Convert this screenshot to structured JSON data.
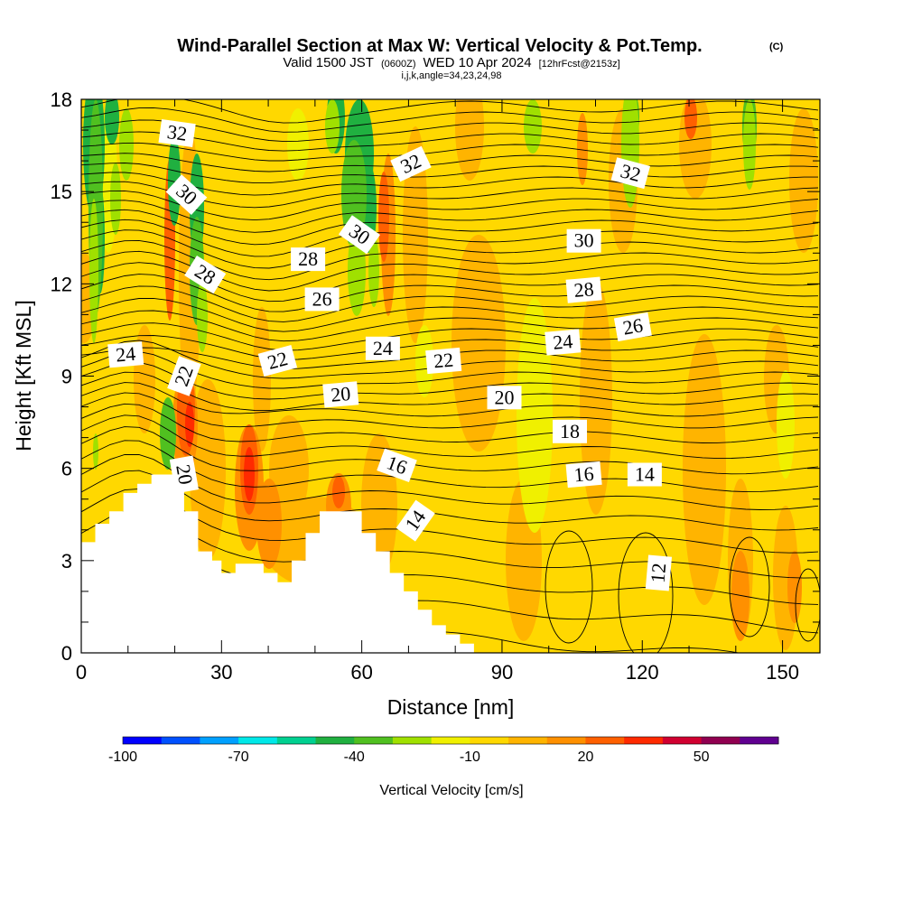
{
  "chart_data": {
    "type": "heatmap",
    "title": {
      "main": "Wind-Parallel Section at Max W: Vertical Velocity & Pot.Temp.",
      "copyright": "(C)",
      "valid_prefix": "Valid 1500 JST",
      "valid_utc": "(0600Z)",
      "valid_date": "WED 10 Apr 2024",
      "forecast": "[12hrFcst@2153z]",
      "indices": "i,j,k,angle=34,23,24,98"
    },
    "xlabel": "Distance [nm]",
    "ylabel": "Height [Kft MSL]",
    "xlim": [
      0,
      158
    ],
    "ylim": [
      0,
      18
    ],
    "x_ticks": [
      "0",
      "30",
      "60",
      "90",
      "120",
      "150"
    ],
    "y_ticks": [
      "0",
      "3",
      "6",
      "9",
      "12",
      "15",
      "18"
    ],
    "colorbar": {
      "label": "Vertical Velocity [cm/s]",
      "tick_labels": [
        "-100",
        "-70",
        "-40",
        "-10",
        "20",
        "50"
      ],
      "colors": [
        "#0000ff",
        "#0050ff",
        "#00a0ff",
        "#00e8e8",
        "#00d090",
        "#20b040",
        "#50c020",
        "#a0e000",
        "#f0f000",
        "#ffd800",
        "#ffb400",
        "#ff9000",
        "#ff6000",
        "#ff2a00",
        "#d00030",
        "#900050",
        "#600090"
      ]
    },
    "terrain": [
      [
        0,
        3.6
      ],
      [
        3,
        3.6
      ],
      [
        3,
        4.2
      ],
      [
        6,
        4.2
      ],
      [
        6,
        4.6
      ],
      [
        9,
        4.6
      ],
      [
        9,
        5.2
      ],
      [
        12,
        5.2
      ],
      [
        12,
        5.5
      ],
      [
        15,
        5.5
      ],
      [
        15,
        5.8
      ],
      [
        22,
        5.8
      ],
      [
        22,
        4.6
      ],
      [
        25,
        4.6
      ],
      [
        25,
        3.3
      ],
      [
        28,
        3.3
      ],
      [
        28,
        3.0
      ],
      [
        30,
        3.0
      ],
      [
        30,
        2.6
      ],
      [
        33,
        2.6
      ],
      [
        33,
        2.9
      ],
      [
        39,
        2.9
      ],
      [
        39,
        2.6
      ],
      [
        42,
        2.6
      ],
      [
        42,
        2.3
      ],
      [
        45,
        2.3
      ],
      [
        45,
        3.0
      ],
      [
        48,
        3.0
      ],
      [
        48,
        3.9
      ],
      [
        51,
        3.9
      ],
      [
        51,
        4.6
      ],
      [
        60,
        4.6
      ],
      [
        60,
        3.9
      ],
      [
        63,
        3.9
      ],
      [
        63,
        3.3
      ],
      [
        66,
        3.3
      ],
      [
        66,
        2.6
      ],
      [
        69,
        2.6
      ],
      [
        69,
        2.0
      ],
      [
        72,
        2.0
      ],
      [
        72,
        1.4
      ],
      [
        75,
        1.4
      ],
      [
        75,
        0.9
      ],
      [
        78,
        0.9
      ],
      [
        78,
        0.6
      ],
      [
        81,
        0.6
      ],
      [
        81,
        0.3
      ],
      [
        84,
        0.3
      ],
      [
        84,
        0.0
      ],
      [
        158,
        0.0
      ]
    ],
    "theta_contours": [
      {
        "label": "32",
        "label_x": 20.5,
        "label_y": 16.9,
        "label_angle": 8
      },
      {
        "label": "30",
        "label_x": 22.5,
        "label_y": 14.9,
        "label_angle": 42
      },
      {
        "label": "28",
        "label_x": 26.5,
        "label_y": 12.3,
        "label_angle": 32
      },
      {
        "label": "24",
        "label_x": 9.5,
        "label_y": 9.7,
        "label_angle": -5
      },
      {
        "label": "22",
        "label_x": 22,
        "label_y": 9.0,
        "label_angle": -70
      },
      {
        "label": "20",
        "label_x": 22,
        "label_y": 5.8,
        "label_angle": 80
      },
      {
        "label": "22",
        "label_x": 42,
        "label_y": 9.5,
        "label_angle": -15
      },
      {
        "label": "28",
        "label_x": 48.5,
        "label_y": 12.8,
        "label_angle": 0
      },
      {
        "label": "26",
        "label_x": 51.5,
        "label_y": 11.5,
        "label_angle": 0
      },
      {
        "label": "20",
        "label_x": 55.5,
        "label_y": 8.4,
        "label_angle": -5
      },
      {
        "label": "24",
        "label_x": 64.5,
        "label_y": 9.9,
        "label_angle": 0
      },
      {
        "label": "30",
        "label_x": 59.5,
        "label_y": 13.6,
        "label_angle": 35
      },
      {
        "label": "32",
        "label_x": 70.5,
        "label_y": 15.9,
        "label_angle": -25
      },
      {
        "label": "22",
        "label_x": 77.5,
        "label_y": 9.5,
        "label_angle": -5
      },
      {
        "label": "16",
        "label_x": 67.5,
        "label_y": 6.1,
        "label_angle": 20
      },
      {
        "label": "14",
        "label_x": 71.5,
        "label_y": 4.3,
        "label_angle": -55
      },
      {
        "label": "20",
        "label_x": 90.5,
        "label_y": 8.3,
        "label_angle": 0
      },
      {
        "label": "18",
        "label_x": 104.5,
        "label_y": 7.2,
        "label_angle": 0
      },
      {
        "label": "16",
        "label_x": 107.5,
        "label_y": 5.8,
        "label_angle": -5
      },
      {
        "label": "14",
        "label_x": 120.5,
        "label_y": 5.8,
        "label_angle": 0
      },
      {
        "label": "12",
        "label_x": 123.5,
        "label_y": 2.6,
        "label_angle": -85
      },
      {
        "label": "24",
        "label_x": 103,
        "label_y": 10.1,
        "label_angle": -5
      },
      {
        "label": "26",
        "label_x": 118,
        "label_y": 10.6,
        "label_angle": -10
      },
      {
        "label": "28",
        "label_x": 107.5,
        "label_y": 11.8,
        "label_angle": -5
      },
      {
        "label": "30",
        "label_x": 107.5,
        "label_y": 13.4,
        "label_angle": 0
      },
      {
        "label": "32",
        "label_x": 117.5,
        "label_y": 15.6,
        "label_angle": 15
      }
    ]
  }
}
